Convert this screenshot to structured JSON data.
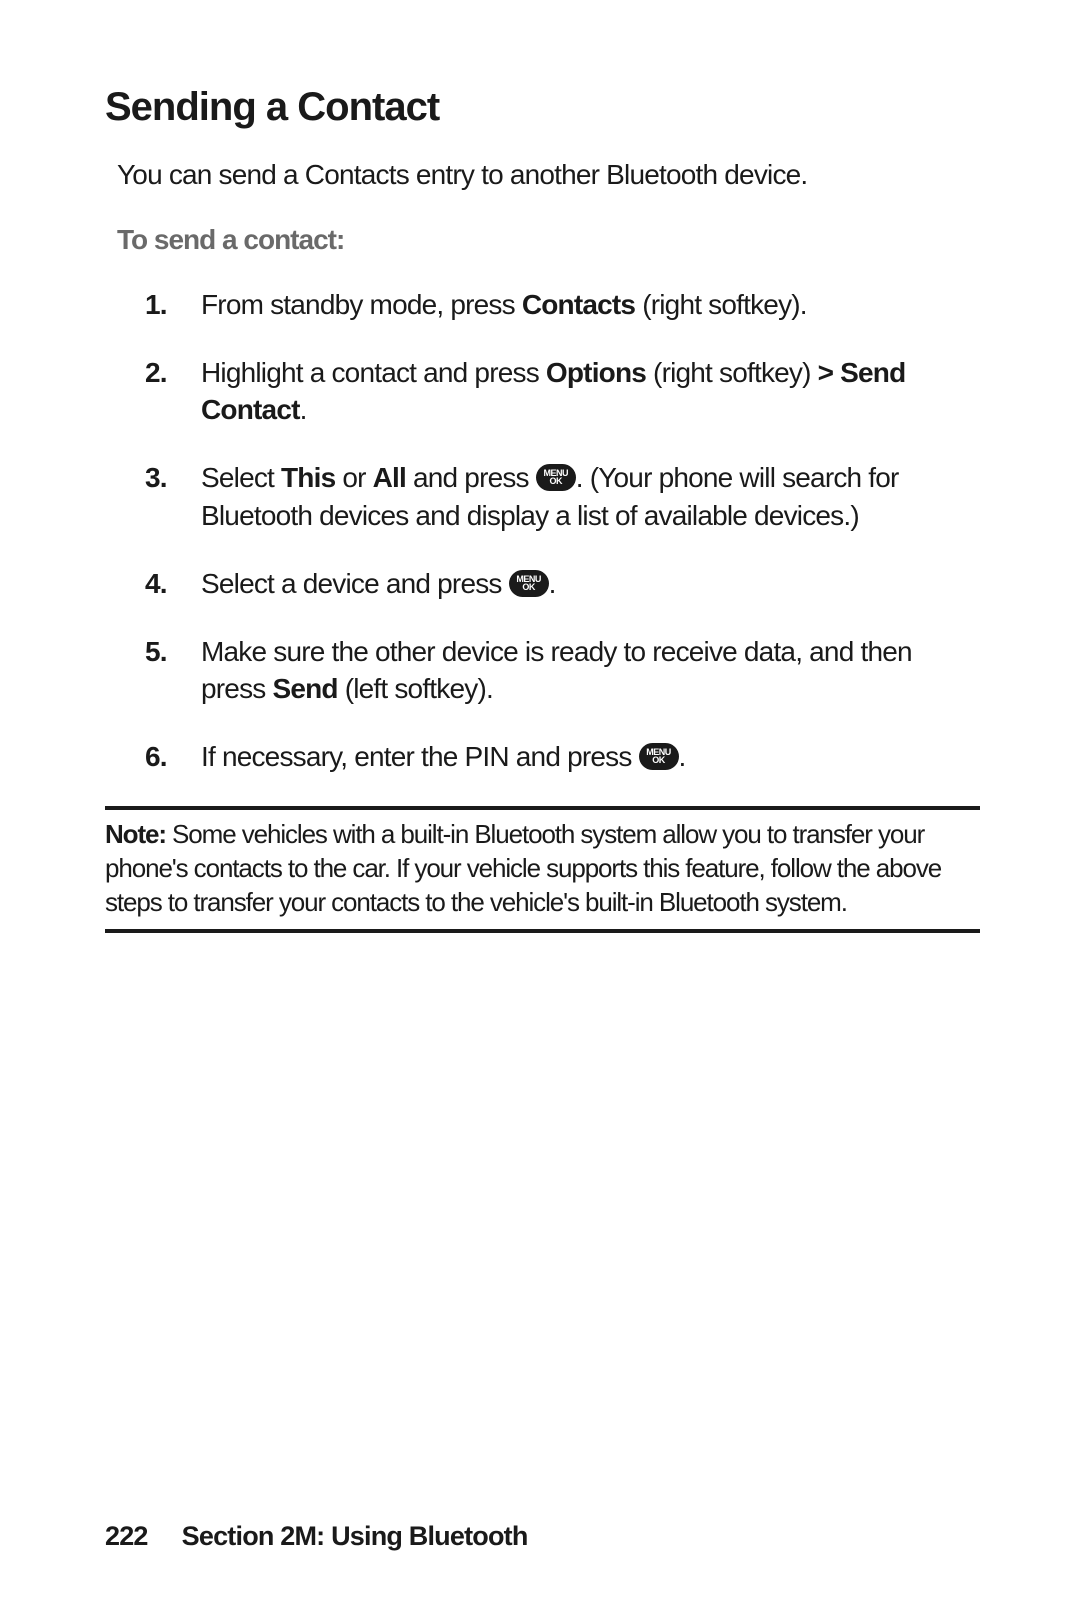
{
  "heading": "Sending a Contact",
  "intro": "You can send a Contacts entry to another Bluetooth device.",
  "subheading": "To send a contact:",
  "steps": {
    "s1": {
      "a": "From standby mode, press ",
      "b": "Contacts",
      "c": " (right softkey)."
    },
    "s2": {
      "a": "Highlight a contact and press ",
      "b": "Options",
      "c": " (right softkey) ",
      "d": "> Send Contact",
      "e": "."
    },
    "s3": {
      "a": "Select ",
      "b": "This",
      "c": " or ",
      "d": "All",
      "e": " and press ",
      "f": ". (Your phone will search for Bluetooth devices and display a list of available devices.)"
    },
    "s4": {
      "a": "Select a device and press ",
      "b": "."
    },
    "s5": {
      "a": "Make sure the other device is ready to receive data, and then press ",
      "b": "Send",
      "c": " (left softkey)."
    },
    "s6": {
      "a": "If necessary, enter the PIN and press ",
      "b": "."
    }
  },
  "note": {
    "label": "Note:",
    "text": " Some vehicles with a built-in Bluetooth system allow you to transfer your phone's contacts to the car. If your vehicle supports this feature, follow the above steps to transfer your contacts to the vehicle's built-in Bluetooth system."
  },
  "footer": {
    "page": "222",
    "section": "Section 2M: Using Bluetooth"
  },
  "icon": {
    "line1": "MENU",
    "line2": "OK"
  }
}
